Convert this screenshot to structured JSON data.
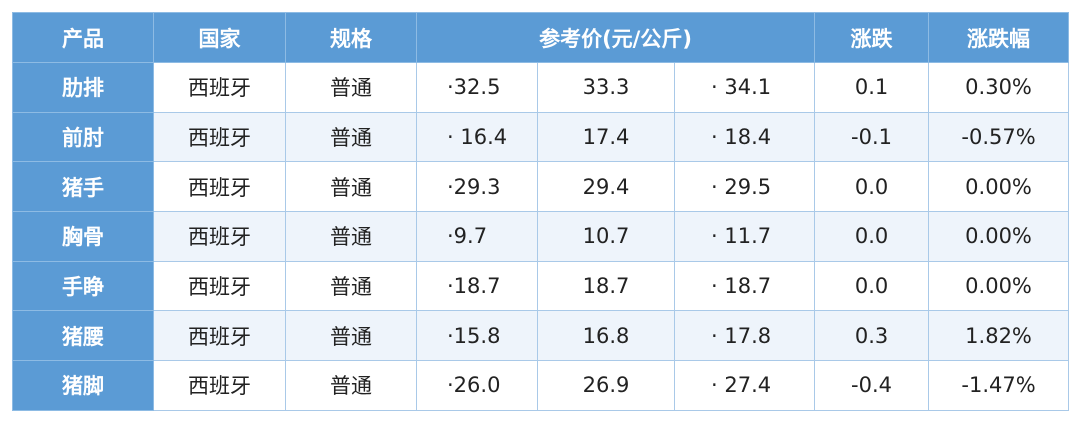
{
  "table": {
    "header": [
      "产品",
      "国家",
      "规格",
      "参考价(元/公斤)",
      "涨跌",
      "涨跌幅"
    ],
    "rows": [
      [
        "肋排",
        "西班牙",
        "普通",
        "·32.5",
        "33.3",
        "· 34.1",
        "0.1",
        "0.30%"
      ],
      [
        "前肘",
        "西班牙",
        "普通",
        "· 16.4",
        "17.4",
        "· 18.4",
        "-0.1",
        "-0.57%"
      ],
      [
        "猪手",
        "西班牙",
        "普通",
        "·29.3",
        "29.4",
        "· 29.5",
        "0.0",
        "0.00%"
      ],
      [
        "胸骨",
        "西班牙",
        "普通",
        "·9.7",
        "10.7",
        "· 11.7",
        "0.0",
        "0.00%"
      ],
      [
        "手睁",
        "西班牙",
        "普通",
        "·18.7",
        "18.7",
        "· 18.7",
        "0.0",
        "0.00%"
      ],
      [
        "猪腰",
        "西班牙",
        "普通",
        "·15.8",
        "16.8",
        "· 17.8",
        "0.3",
        "1.82%"
      ],
      [
        "猪脚",
        "西班牙",
        "普通",
        "·26.0",
        "26.9",
        "· 27.4",
        "-0.4",
        "-1.47%"
      ]
    ]
  }
}
